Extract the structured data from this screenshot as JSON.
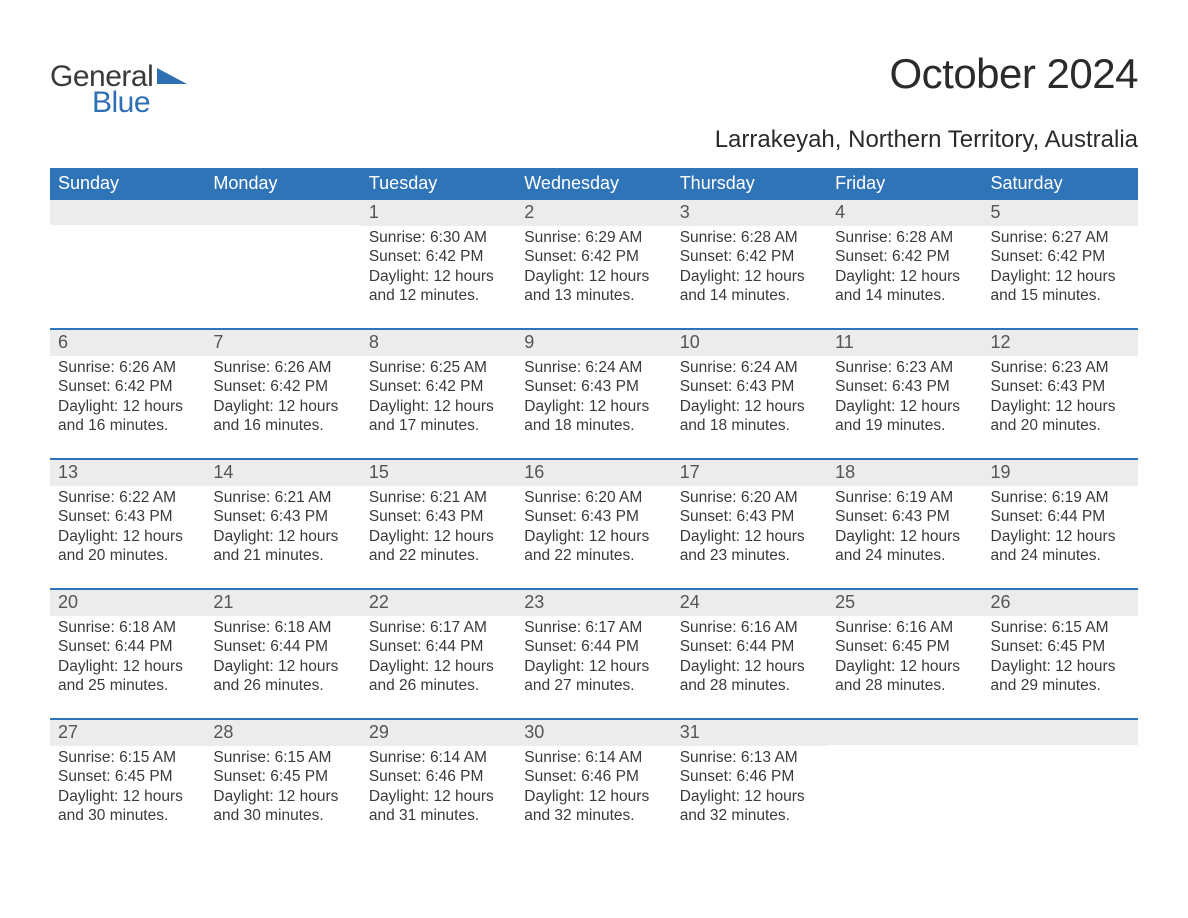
{
  "brand": {
    "word1": "General",
    "word2": "Blue",
    "mark_color": "#2f6fb4",
    "word1_color": "#3a3a3a",
    "word2_color": "#2f6fb4"
  },
  "title": "October 2024",
  "location": "Larrakeyah, Northern Territory, Australia",
  "colors": {
    "header_bg": "#3074b8",
    "header_text": "#ffffff",
    "daynum_bg": "#ececec",
    "daynum_text": "#555555",
    "body_text": "#3a3a3a",
    "week_divider": "#3074b8",
    "page_bg": "#ffffff"
  },
  "fonts": {
    "title_size_pt": 32,
    "location_size_pt": 18,
    "header_size_pt": 14,
    "daynum_size_pt": 14,
    "body_size_pt": 12
  },
  "weekday_labels": [
    "Sunday",
    "Monday",
    "Tuesday",
    "Wednesday",
    "Thursday",
    "Friday",
    "Saturday"
  ],
  "weeks": [
    [
      {
        "num": "",
        "sunrise": "",
        "sunset": "",
        "daylight": ""
      },
      {
        "num": "",
        "sunrise": "",
        "sunset": "",
        "daylight": ""
      },
      {
        "num": "1",
        "sunrise": "Sunrise: 6:30 AM",
        "sunset": "Sunset: 6:42 PM",
        "daylight": "Daylight: 12 hours and 12 minutes."
      },
      {
        "num": "2",
        "sunrise": "Sunrise: 6:29 AM",
        "sunset": "Sunset: 6:42 PM",
        "daylight": "Daylight: 12 hours and 13 minutes."
      },
      {
        "num": "3",
        "sunrise": "Sunrise: 6:28 AM",
        "sunset": "Sunset: 6:42 PM",
        "daylight": "Daylight: 12 hours and 14 minutes."
      },
      {
        "num": "4",
        "sunrise": "Sunrise: 6:28 AM",
        "sunset": "Sunset: 6:42 PM",
        "daylight": "Daylight: 12 hours and 14 minutes."
      },
      {
        "num": "5",
        "sunrise": "Sunrise: 6:27 AM",
        "sunset": "Sunset: 6:42 PM",
        "daylight": "Daylight: 12 hours and 15 minutes."
      }
    ],
    [
      {
        "num": "6",
        "sunrise": "Sunrise: 6:26 AM",
        "sunset": "Sunset: 6:42 PM",
        "daylight": "Daylight: 12 hours and 16 minutes."
      },
      {
        "num": "7",
        "sunrise": "Sunrise: 6:26 AM",
        "sunset": "Sunset: 6:42 PM",
        "daylight": "Daylight: 12 hours and 16 minutes."
      },
      {
        "num": "8",
        "sunrise": "Sunrise: 6:25 AM",
        "sunset": "Sunset: 6:42 PM",
        "daylight": "Daylight: 12 hours and 17 minutes."
      },
      {
        "num": "9",
        "sunrise": "Sunrise: 6:24 AM",
        "sunset": "Sunset: 6:43 PM",
        "daylight": "Daylight: 12 hours and 18 minutes."
      },
      {
        "num": "10",
        "sunrise": "Sunrise: 6:24 AM",
        "sunset": "Sunset: 6:43 PM",
        "daylight": "Daylight: 12 hours and 18 minutes."
      },
      {
        "num": "11",
        "sunrise": "Sunrise: 6:23 AM",
        "sunset": "Sunset: 6:43 PM",
        "daylight": "Daylight: 12 hours and 19 minutes."
      },
      {
        "num": "12",
        "sunrise": "Sunrise: 6:23 AM",
        "sunset": "Sunset: 6:43 PM",
        "daylight": "Daylight: 12 hours and 20 minutes."
      }
    ],
    [
      {
        "num": "13",
        "sunrise": "Sunrise: 6:22 AM",
        "sunset": "Sunset: 6:43 PM",
        "daylight": "Daylight: 12 hours and 20 minutes."
      },
      {
        "num": "14",
        "sunrise": "Sunrise: 6:21 AM",
        "sunset": "Sunset: 6:43 PM",
        "daylight": "Daylight: 12 hours and 21 minutes."
      },
      {
        "num": "15",
        "sunrise": "Sunrise: 6:21 AM",
        "sunset": "Sunset: 6:43 PM",
        "daylight": "Daylight: 12 hours and 22 minutes."
      },
      {
        "num": "16",
        "sunrise": "Sunrise: 6:20 AM",
        "sunset": "Sunset: 6:43 PM",
        "daylight": "Daylight: 12 hours and 22 minutes."
      },
      {
        "num": "17",
        "sunrise": "Sunrise: 6:20 AM",
        "sunset": "Sunset: 6:43 PM",
        "daylight": "Daylight: 12 hours and 23 minutes."
      },
      {
        "num": "18",
        "sunrise": "Sunrise: 6:19 AM",
        "sunset": "Sunset: 6:43 PM",
        "daylight": "Daylight: 12 hours and 24 minutes."
      },
      {
        "num": "19",
        "sunrise": "Sunrise: 6:19 AM",
        "sunset": "Sunset: 6:44 PM",
        "daylight": "Daylight: 12 hours and 24 minutes."
      }
    ],
    [
      {
        "num": "20",
        "sunrise": "Sunrise: 6:18 AM",
        "sunset": "Sunset: 6:44 PM",
        "daylight": "Daylight: 12 hours and 25 minutes."
      },
      {
        "num": "21",
        "sunrise": "Sunrise: 6:18 AM",
        "sunset": "Sunset: 6:44 PM",
        "daylight": "Daylight: 12 hours and 26 minutes."
      },
      {
        "num": "22",
        "sunrise": "Sunrise: 6:17 AM",
        "sunset": "Sunset: 6:44 PM",
        "daylight": "Daylight: 12 hours and 26 minutes."
      },
      {
        "num": "23",
        "sunrise": "Sunrise: 6:17 AM",
        "sunset": "Sunset: 6:44 PM",
        "daylight": "Daylight: 12 hours and 27 minutes."
      },
      {
        "num": "24",
        "sunrise": "Sunrise: 6:16 AM",
        "sunset": "Sunset: 6:44 PM",
        "daylight": "Daylight: 12 hours and 28 minutes."
      },
      {
        "num": "25",
        "sunrise": "Sunrise: 6:16 AM",
        "sunset": "Sunset: 6:45 PM",
        "daylight": "Daylight: 12 hours and 28 minutes."
      },
      {
        "num": "26",
        "sunrise": "Sunrise: 6:15 AM",
        "sunset": "Sunset: 6:45 PM",
        "daylight": "Daylight: 12 hours and 29 minutes."
      }
    ],
    [
      {
        "num": "27",
        "sunrise": "Sunrise: 6:15 AM",
        "sunset": "Sunset: 6:45 PM",
        "daylight": "Daylight: 12 hours and 30 minutes."
      },
      {
        "num": "28",
        "sunrise": "Sunrise: 6:15 AM",
        "sunset": "Sunset: 6:45 PM",
        "daylight": "Daylight: 12 hours and 30 minutes."
      },
      {
        "num": "29",
        "sunrise": "Sunrise: 6:14 AM",
        "sunset": "Sunset: 6:46 PM",
        "daylight": "Daylight: 12 hours and 31 minutes."
      },
      {
        "num": "30",
        "sunrise": "Sunrise: 6:14 AM",
        "sunset": "Sunset: 6:46 PM",
        "daylight": "Daylight: 12 hours and 32 minutes."
      },
      {
        "num": "31",
        "sunrise": "Sunrise: 6:13 AM",
        "sunset": "Sunset: 6:46 PM",
        "daylight": "Daylight: 12 hours and 32 minutes."
      },
      {
        "num": "",
        "sunrise": "",
        "sunset": "",
        "daylight": ""
      },
      {
        "num": "",
        "sunrise": "",
        "sunset": "",
        "daylight": ""
      }
    ]
  ]
}
